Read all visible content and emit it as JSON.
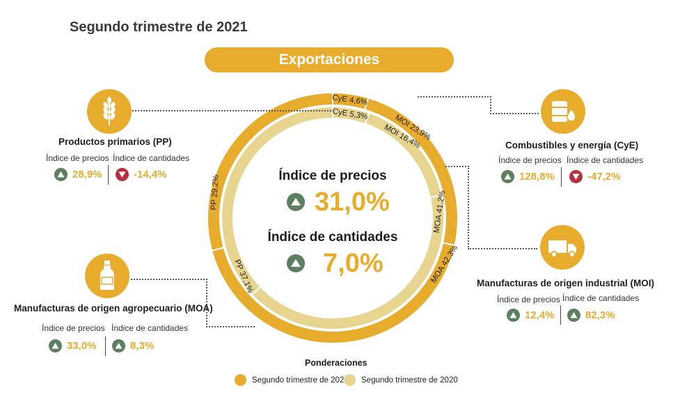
{
  "title": "Segundo trimestre de 2021",
  "banner": "Exportaciones",
  "colors": {
    "primary": "#e8ac2c",
    "secondary": "#e6d48f",
    "up": "#5c7f5f",
    "down": "#b5303f"
  },
  "center": {
    "precios_label": "Índice de precios",
    "precios_value": "31,0%",
    "precios_trend": "up",
    "cantidades_label": "Índice de cantidades",
    "cantidades_value": "7,0%",
    "cantidades_trend": "up"
  },
  "categories": {
    "pp": {
      "icon": "wheat-icon",
      "title": "Productos primarios (PP)",
      "precios_label": "Índice de precios",
      "precios_value": "28,9%",
      "precios_trend": "up",
      "cantidades_label": "Índice de cantidades",
      "cantidades_value": "-14,4%",
      "cantidades_trend": "down"
    },
    "cye": {
      "icon": "fuel-barrel-icon",
      "title": "Combustibles y energía (CyE)",
      "precios_label": "Índice de precios",
      "precios_value": "128,8%",
      "precios_trend": "up",
      "cantidades_label": "Índice de cantidades",
      "cantidades_value": "-47,2%",
      "cantidades_trend": "down"
    },
    "moa": {
      "icon": "bottle-icon",
      "title": "Manufacturas de origen agropecuario (MOA)",
      "precios_label": "Índice de precios",
      "precios_value": "33,0%",
      "precios_trend": "up",
      "cantidades_label": "Índice de cantidades",
      "cantidades_value": "8,3%",
      "cantidades_trend": "up"
    },
    "moi": {
      "icon": "truck-icon",
      "title": "Manufacturas de origen industrial (MOI)",
      "precios_label": "Índice de precios",
      "precios_value": "12,4%",
      "precios_trend": "up",
      "cantidades_label": "Índice de cantidades",
      "cantidades_value": "82,3%",
      "cantidades_trend": "up"
    }
  },
  "legend": {
    "title": "Ponderaciones",
    "items": [
      {
        "label": "Segundo trimestre de 2021",
        "color": "#e8ac2c"
      },
      {
        "label": "Segundo trimestre de 2020",
        "color": "#e6d48f"
      }
    ]
  },
  "chart_data": {
    "type": "pie",
    "title": "Ponderaciones",
    "categories": [
      "CyE",
      "MOI",
      "MOA",
      "PP"
    ],
    "series": [
      {
        "name": "Segundo trimestre de 2021",
        "values": [
          4.6,
          23.9,
          42.3,
          29.2
        ],
        "labels": [
          "CyE 4,6%",
          "MOI 23,9%",
          "MOA 42,3%",
          "PP 29,2%"
        ]
      },
      {
        "name": "Segundo trimestre de 2020",
        "values": [
          5.3,
          16.4,
          41.2,
          37.1
        ],
        "labels": [
          "CyE 5,3%",
          "MOI 16,4%",
          "MOA 41,2%",
          "PP 37,1%"
        ]
      }
    ],
    "legend_position": "bottom"
  }
}
